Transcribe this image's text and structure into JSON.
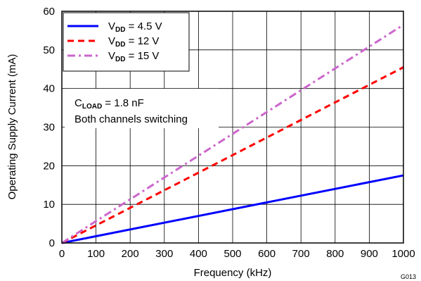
{
  "chart_data": {
    "type": "line",
    "xlabel": "Frequency (kHz)",
    "ylabel": "Operating Supply Current (mA)",
    "xlim": [
      0,
      1000
    ],
    "ylim": [
      0,
      60
    ],
    "x_ticks": [
      0,
      100,
      200,
      300,
      400,
      500,
      600,
      700,
      800,
      900,
      1000
    ],
    "y_ticks": [
      0,
      10,
      20,
      30,
      40,
      50,
      60
    ],
    "grid": true,
    "legend_position": "top-left",
    "series": [
      {
        "name_main": "V",
        "name_sub": "DD",
        "name_rest": " = 4.5 V",
        "color": "#0000ff",
        "dash": "solid",
        "x": [
          0,
          1000
        ],
        "y": [
          0,
          17.5
        ]
      },
      {
        "name_main": "V",
        "name_sub": "DD",
        "name_rest": " = 12 V",
        "color": "#ff0000",
        "dash": "dashed",
        "x": [
          0,
          1000
        ],
        "y": [
          0,
          45.5
        ]
      },
      {
        "name_main": "V",
        "name_sub": "DD",
        "name_rest": " = 15 V",
        "color": "#cc66cc",
        "dash": "dashdot",
        "x": [
          0,
          1000
        ],
        "y": [
          0,
          56.5
        ]
      }
    ],
    "annotation": {
      "line1_main": "C",
      "line1_sub": "LOAD",
      "line1_rest": " = 1.8 nF",
      "line2": "Both channels switching"
    },
    "figure_code": "G013"
  }
}
